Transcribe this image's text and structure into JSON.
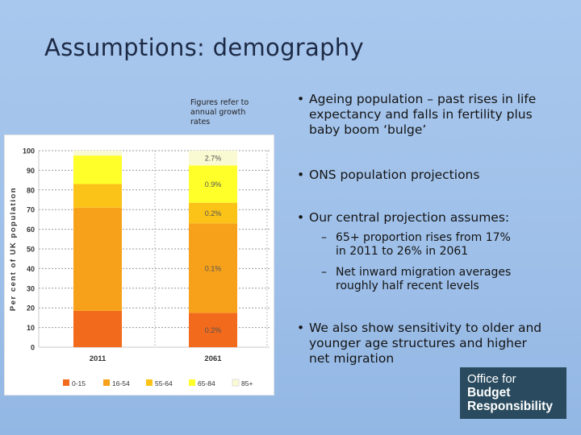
{
  "slide": {
    "title": "Assumptions: demography",
    "note": "Figures refer to annual growth rates"
  },
  "bullets": [
    {
      "text": "Ageing population – past rises in life expectancy and falls in fertility plus baby boom ‘bulge’"
    },
    {
      "text": "ONS population projections"
    },
    {
      "text": "Our central projection assumes:"
    },
    {
      "text": "We also show sensitivity to older and younger age structures and higher net migration"
    }
  ],
  "subbullets": [
    {
      "text": "65+ proportion rises from 17% in 2011 to 26% in 2061"
    },
    {
      "text": "Net inward migration averages roughly half recent levels"
    }
  ],
  "logo": {
    "line1": "Office for",
    "line2": "Budget",
    "line3": "Responsibility"
  },
  "chart_data": {
    "type": "bar",
    "stacked": true,
    "ylabel": "Per cent of UK population",
    "ylim": [
      0,
      100
    ],
    "yticks": [
      0,
      10,
      20,
      30,
      40,
      50,
      60,
      70,
      80,
      90,
      100
    ],
    "grid": true,
    "categories": [
      "2011",
      "2061"
    ],
    "series": [
      {
        "name": "0-15",
        "color": "#f26a1b",
        "values": [
          18.5,
          17.5
        ]
      },
      {
        "name": "16-54",
        "color": "#f7a11a",
        "values": [
          52.5,
          45.5
        ]
      },
      {
        "name": "55-64",
        "color": "#fbc318",
        "values": [
          12,
          10.5
        ]
      },
      {
        "name": "65-84",
        "color": "#ffff2a",
        "values": [
          14.5,
          19
        ]
      },
      {
        "name": "85+",
        "color": "#fafad2",
        "values": [
          2.5,
          7.5
        ]
      }
    ],
    "annotations": [
      "0.2%",
      "0.1%",
      "0.2%",
      "0.9%",
      "2.7%"
    ],
    "legend_position": "bottom"
  }
}
